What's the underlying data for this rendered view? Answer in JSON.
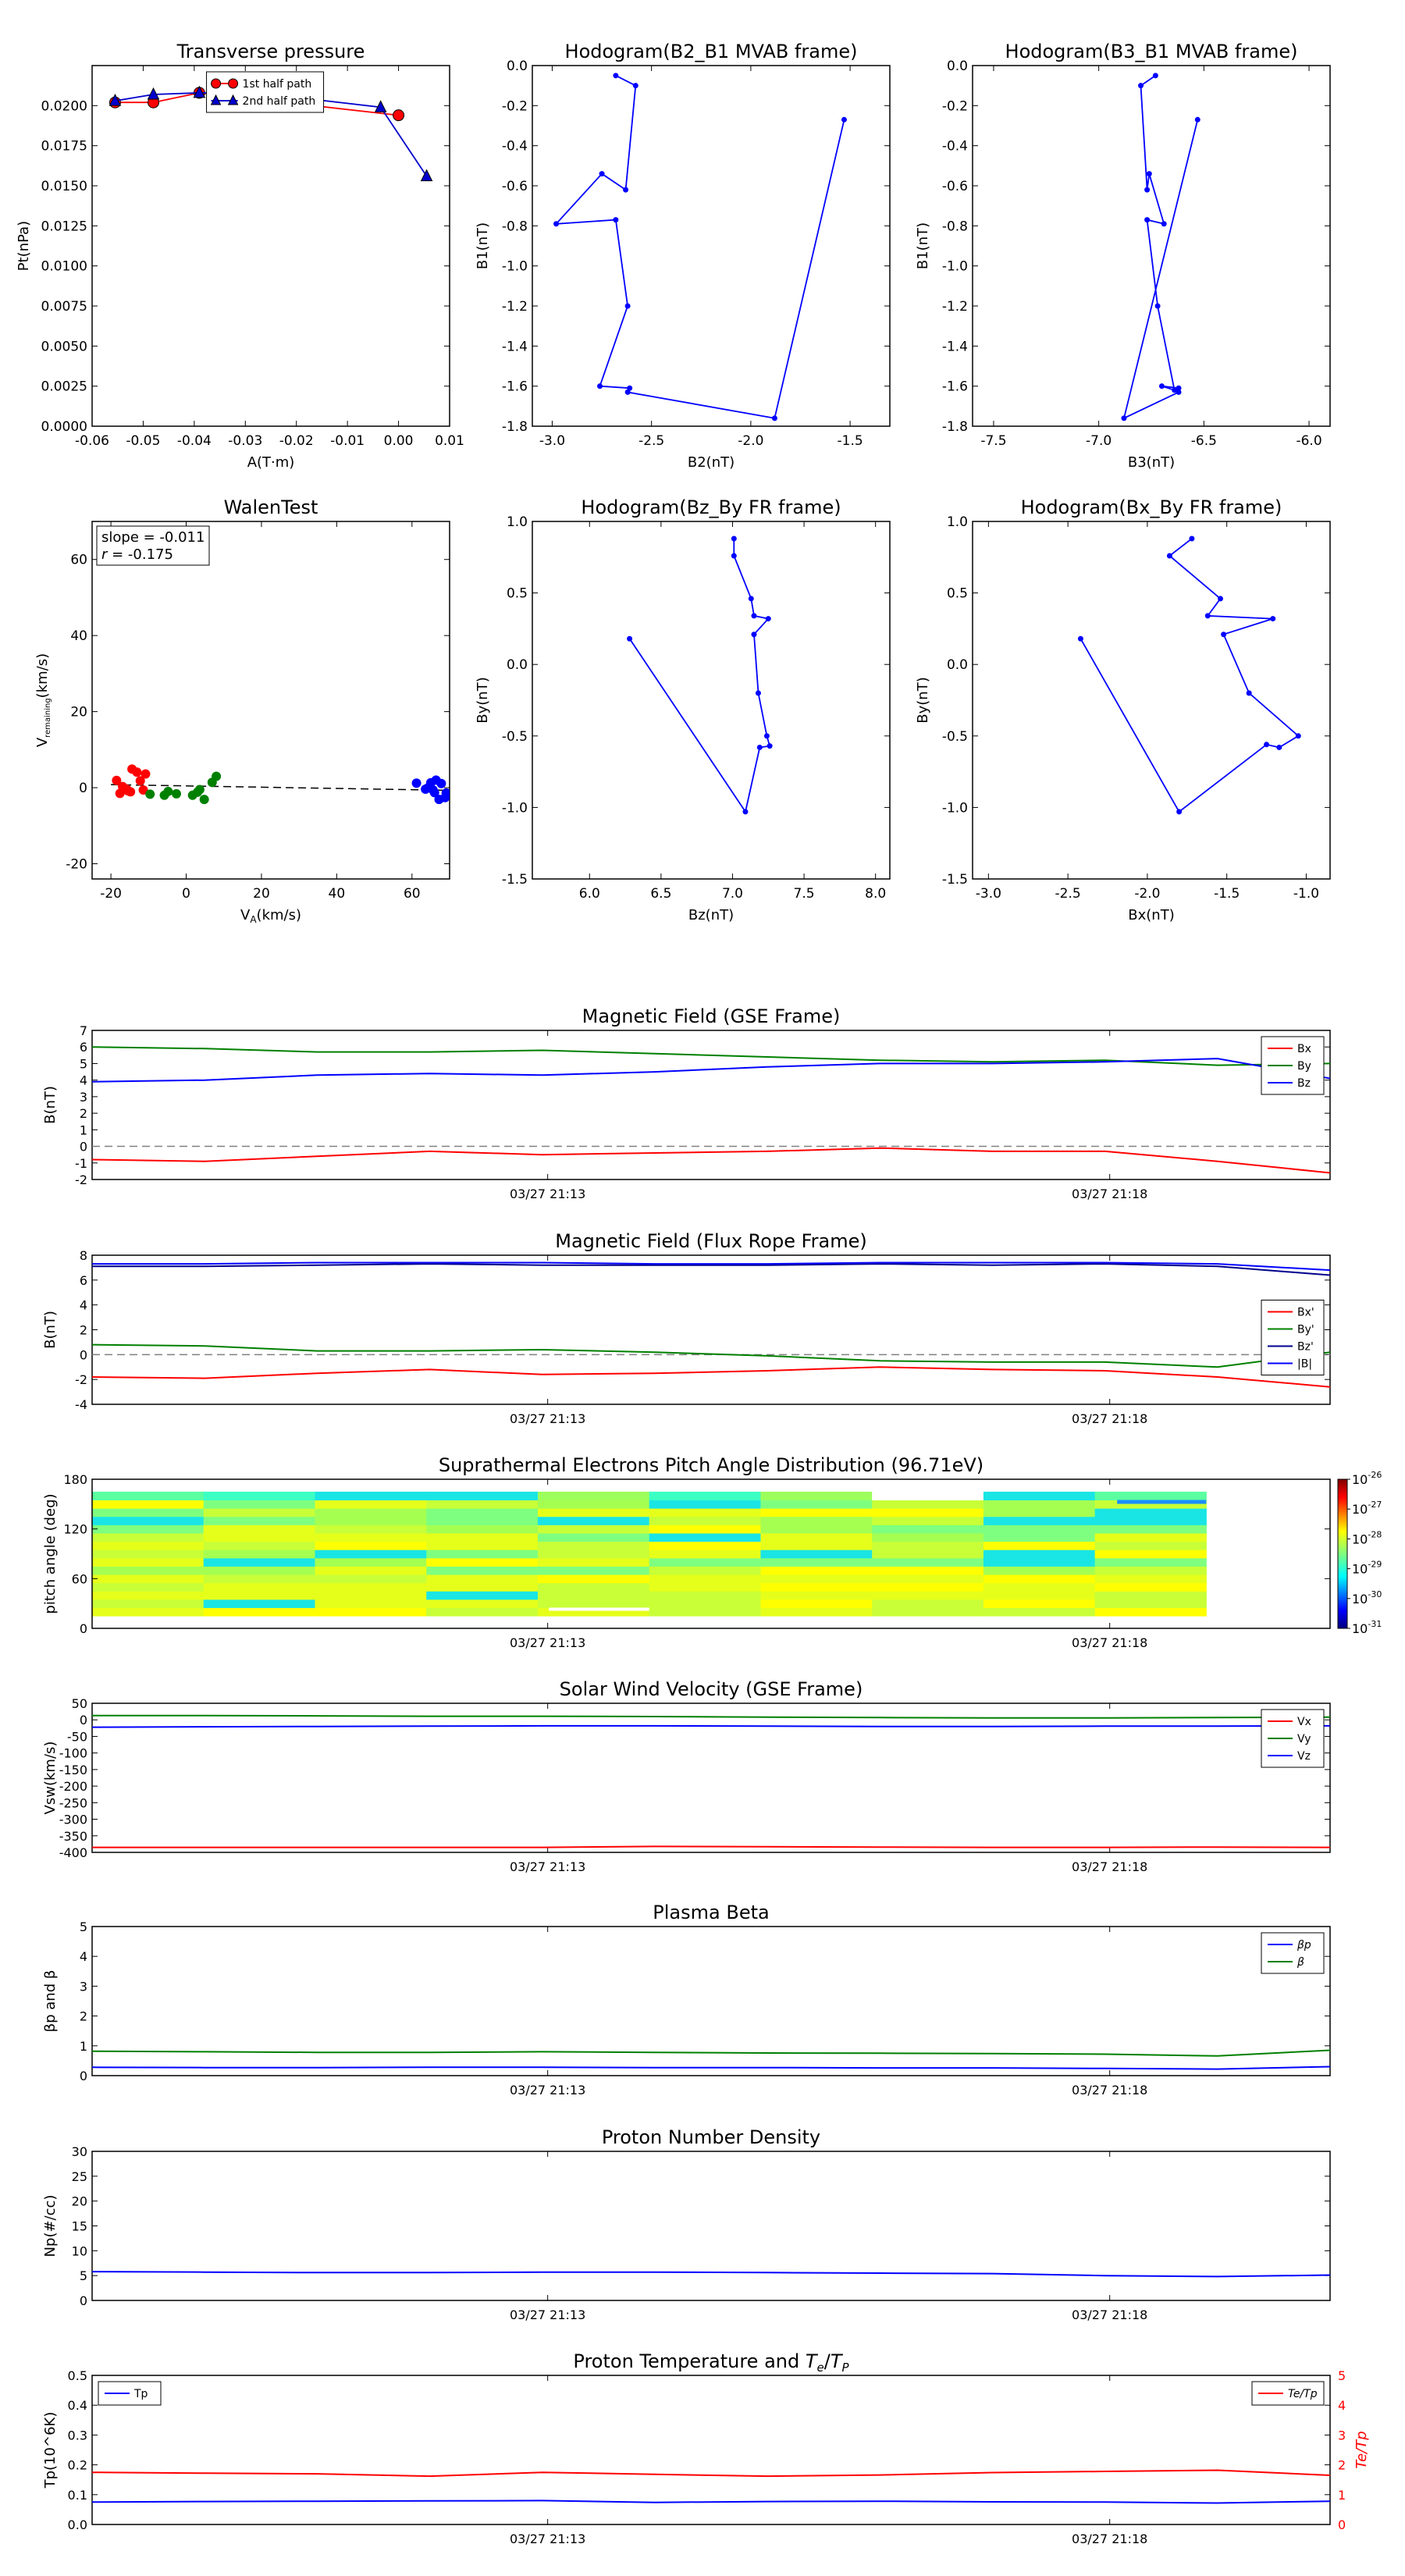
{
  "chart_data": [
    {
      "id": "tp",
      "type": "scatter",
      "title": "Transverse pressure",
      "xlabel": "A(T·m)",
      "ylabel": "Pt(nPa)",
      "xlim": [
        -0.06,
        0.01
      ],
      "ylim": [
        0,
        0.0225
      ],
      "xticks": [
        -0.06,
        -0.05,
        -0.04,
        -0.03,
        -0.02,
        -0.01,
        0.0,
        0.01
      ],
      "yticks": [
        0,
        0.0025,
        0.005,
        0.0075,
        0.01,
        0.0125,
        0.015,
        0.0175,
        0.02
      ],
      "xfmt": 2,
      "yfmt": 4,
      "legend": {
        "position": "top-center",
        "entries": [
          "1st half path",
          "2nd half path"
        ]
      },
      "series": [
        {
          "name": "1st half path",
          "color": "#ff0000",
          "marker": "circle",
          "x": [
            -0.0555,
            -0.048,
            -0.039,
            0.0
          ],
          "y": [
            0.0202,
            0.0202,
            0.0208,
            0.0194
          ]
        },
        {
          "name": "2nd half path",
          "color": "#0000cc",
          "marker": "triangle",
          "x": [
            -0.0555,
            -0.048,
            -0.039,
            -0.025,
            -0.0035,
            0.0055
          ],
          "y": [
            0.0203,
            0.0207,
            0.0208,
            0.0207,
            0.0199,
            0.0156
          ]
        }
      ]
    },
    {
      "id": "hodo1",
      "type": "line",
      "title": "Hodogram(B2_B1 MVAB frame)",
      "xlabel": "B2(nT)",
      "ylabel": "B1(nT)",
      "xlim": [
        -3.1,
        -1.3
      ],
      "ylim": [
        -1.8,
        0
      ],
      "xticks": [
        -3.0,
        -2.5,
        -2.0,
        -1.5
      ],
      "yticks": [
        -1.8,
        -1.6,
        -1.4,
        -1.2,
        -1.0,
        -0.8,
        -0.6,
        -0.4,
        -0.2,
        0.0
      ],
      "xfmt": 1,
      "yfmt": 1,
      "series": [
        {
          "color": "#0000ff",
          "x": [
            -2.68,
            -2.58,
            -2.63,
            -2.75,
            -2.98,
            -2.68,
            -2.62,
            -2.76,
            -2.61,
            -2.62,
            -1.88,
            -1.53
          ],
          "y": [
            -0.05,
            -0.1,
            -0.62,
            -0.54,
            -0.79,
            -0.77,
            -1.2,
            -1.6,
            -1.61,
            -1.63,
            -1.76,
            -0.27
          ]
        }
      ]
    },
    {
      "id": "hodo2",
      "type": "line",
      "title": "Hodogram(B3_B1 MVAB frame)",
      "xlabel": "B3(nT)",
      "ylabel": "B1(nT)",
      "xlim": [
        -7.6,
        -5.9
      ],
      "ylim": [
        -1.8,
        0
      ],
      "xticks": [
        -7.5,
        -7.0,
        -6.5,
        -6.0
      ],
      "yticks": [
        -1.8,
        -1.6,
        -1.4,
        -1.2,
        -1.0,
        -0.8,
        -0.6,
        -0.4,
        -0.2,
        0.0
      ],
      "xfmt": 1,
      "yfmt": 1,
      "series": [
        {
          "color": "#0000ff",
          "x": [
            -6.73,
            -6.8,
            -6.77,
            -6.76,
            -6.69,
            -6.77,
            -6.72,
            -6.64,
            -6.7,
            -6.62,
            -6.62,
            -6.88,
            -6.53
          ],
          "y": [
            -0.05,
            -0.1,
            -0.62,
            -0.54,
            -0.79,
            -0.77,
            -1.2,
            -1.62,
            -1.6,
            -1.61,
            -1.63,
            -1.76,
            -0.27
          ]
        }
      ]
    },
    {
      "id": "walen",
      "type": "scatter",
      "title": "WalenTest",
      "xlabel": "V_A(km/s)",
      "ylabel": "V_remaining(km/s)",
      "xlim": [
        -25,
        70
      ],
      "ylim": [
        -24,
        70
      ],
      "xticks": [
        -20,
        0,
        20,
        40,
        60
      ],
      "yticks": [
        -20,
        0,
        20,
        40,
        60
      ],
      "xfmt": 0,
      "yfmt": 0,
      "annotation": {
        "line1": "slope = -0.011",
        "line2": "r = -0.175"
      },
      "fit_line": {
        "x": [
          -20,
          70
        ],
        "y": [
          0.8,
          -0.7
        ]
      },
      "series": [
        {
          "color": "#ff0000",
          "x": [
            -18.5,
            -17.6,
            -16.9,
            -15.5,
            -14.8,
            -14.4,
            -13.1,
            -12.2,
            -11.4,
            -10.8,
            -15.8
          ],
          "y": [
            1.9,
            -1.5,
            0.3,
            -0.8,
            -1.1,
            4.9,
            4.1,
            1.8,
            -0.6,
            3.6,
            -0.4
          ]
        },
        {
          "color": "#008000",
          "x": [
            -9.6,
            -5.8,
            -4.8,
            -2.6,
            1.7,
            3.0,
            3.6,
            4.8,
            6.9,
            8.0
          ],
          "y": [
            -1.7,
            -2.0,
            -1.0,
            -1.6,
            -2.0,
            -1.2,
            -0.5,
            -3.1,
            1.4,
            3.0
          ]
        },
        {
          "color": "#0000ff",
          "x": [
            61.2,
            63.6,
            64.3,
            65.0,
            65.6,
            66.0,
            66.4,
            67.2,
            67.8,
            68.8,
            69.1
          ],
          "y": [
            1.2,
            -0.4,
            0.0,
            1.3,
            -0.6,
            -1.3,
            2.0,
            -3.1,
            1.1,
            -2.6,
            -1.4
          ]
        }
      ]
    },
    {
      "id": "hodo3",
      "type": "line",
      "title": "Hodogram(Bz_By FR frame)",
      "xlabel": "Bz(nT)",
      "ylabel": "By(nT)",
      "xlim": [
        5.6,
        8.1
      ],
      "ylim": [
        -1.5,
        1.0
      ],
      "xticks": [
        6.0,
        6.5,
        7.0,
        7.5,
        8.0
      ],
      "yticks": [
        -1.5,
        -1.0,
        -0.5,
        0.0,
        0.5,
        1.0
      ],
      "xfmt": 1,
      "yfmt": 1,
      "series": [
        {
          "color": "#0000ff",
          "x": [
            7.01,
            7.01,
            7.13,
            7.15,
            7.25,
            7.15,
            7.18,
            7.24,
            7.26,
            7.19,
            7.09,
            6.28
          ],
          "y": [
            0.88,
            0.76,
            0.46,
            0.34,
            0.32,
            0.21,
            -0.2,
            -0.5,
            -0.57,
            -0.58,
            -1.03,
            0.18
          ]
        }
      ]
    },
    {
      "id": "hodo4",
      "type": "line",
      "title": "Hodogram(Bx_By FR frame)",
      "xlabel": "Bx(nT)",
      "ylabel": "By(nT)",
      "xlim": [
        -3.1,
        -0.85
      ],
      "ylim": [
        -1.5,
        1.0
      ],
      "xticks": [
        -3.0,
        -2.5,
        -2.0,
        -1.5,
        -1.0
      ],
      "yticks": [
        -1.5,
        -1.0,
        -0.5,
        0.0,
        0.5,
        1.0
      ],
      "xfmt": 1,
      "yfmt": 1,
      "series": [
        {
          "color": "#0000ff",
          "x": [
            -1.72,
            -1.86,
            -1.54,
            -1.62,
            -1.21,
            -1.52,
            -1.36,
            -1.05,
            -1.17,
            -1.25,
            -1.8,
            -2.42
          ],
          "y": [
            0.88,
            0.76,
            0.46,
            0.34,
            0.32,
            0.21,
            -0.2,
            -0.5,
            -0.58,
            -0.56,
            -1.03,
            0.18
          ]
        }
      ]
    },
    {
      "id": "bgse",
      "type": "line",
      "title": "Magnetic Field (GSE Frame)",
      "ylabel": "B(nT)",
      "ylim": [
        -2,
        7
      ],
      "yticks": [
        -2,
        -1,
        0,
        1,
        2,
        3,
        4,
        5,
        6,
        7
      ],
      "xticklabels": [
        "03/27 21:13",
        "03/27 21:18"
      ],
      "zero_line": true,
      "legend": {
        "position": "top-right",
        "entries": [
          "Bx",
          "By",
          "Bz"
        ]
      },
      "x": [
        0,
        1,
        2,
        3,
        4,
        5,
        6,
        7,
        8,
        9,
        10,
        11
      ],
      "series": [
        {
          "name": "Bx",
          "color": "#ff0000",
          "values": [
            -0.8,
            -0.9,
            -0.6,
            -0.3,
            -0.5,
            -0.4,
            -0.3,
            -0.1,
            -0.3,
            -0.3,
            -0.9,
            -1.6
          ]
        },
        {
          "name": "By",
          "color": "#008000",
          "values": [
            6.0,
            5.9,
            5.7,
            5.7,
            5.8,
            5.6,
            5.4,
            5.2,
            5.1,
            5.2,
            4.9,
            5.0
          ]
        },
        {
          "name": "Bz",
          "color": "#0000ff",
          "values": [
            3.9,
            4.0,
            4.3,
            4.4,
            4.3,
            4.5,
            4.8,
            5.0,
            5.0,
            5.1,
            5.3,
            4.1
          ]
        }
      ]
    },
    {
      "id": "bfr",
      "type": "line",
      "title": "Magnetic Field (Flux Rope Frame)",
      "ylabel": "B(nT)",
      "ylim": [
        -4,
        8
      ],
      "yticks": [
        -4,
        -2,
        0,
        2,
        4,
        6,
        8
      ],
      "xticklabels": [
        "03/27 21:13",
        "03/27 21:18"
      ],
      "zero_line": true,
      "legend": {
        "position": "right",
        "entries": [
          "Bx'",
          "By'",
          "Bz'",
          "|B|"
        ]
      },
      "x": [
        0,
        1,
        2,
        3,
        4,
        5,
        6,
        7,
        8,
        9,
        10,
        11
      ],
      "series": [
        {
          "name": "Bx'",
          "color": "#ff0000",
          "values": [
            -1.8,
            -1.9,
            -1.5,
            -1.2,
            -1.6,
            -1.5,
            -1.3,
            -1.0,
            -1.2,
            -1.3,
            -1.8,
            -2.6
          ]
        },
        {
          "name": "By'",
          "color": "#008000",
          "values": [
            0.8,
            0.7,
            0.3,
            0.3,
            0.4,
            0.2,
            -0.1,
            -0.5,
            -0.6,
            -0.6,
            -1.0,
            0.2
          ]
        },
        {
          "name": "Bz'",
          "color": "#00008b",
          "values": [
            7.1,
            7.1,
            7.2,
            7.3,
            7.2,
            7.2,
            7.2,
            7.3,
            7.2,
            7.3,
            7.1,
            6.4
          ]
        },
        {
          "name": "|B|",
          "color": "#0000ff",
          "values": [
            7.3,
            7.3,
            7.4,
            7.4,
            7.4,
            7.3,
            7.3,
            7.4,
            7.4,
            7.4,
            7.3,
            6.8
          ]
        }
      ]
    },
    {
      "id": "pad",
      "type": "heatmap",
      "title": "Suprathermal Electrons Pitch Angle Distribution (96.71eV)",
      "ylabel": "pitch angle (deg)",
      "ylim": [
        0,
        180
      ],
      "yticks": [
        0,
        60,
        120,
        180
      ],
      "xticklabels": [
        "03/27 21:13",
        "03/27 21:18"
      ],
      "colorbar": {
        "min_exp": -31,
        "max_exp": -26,
        "ticks": [
          "10-26",
          "10-27",
          "10-28",
          "10-29",
          "10-30",
          "10-31"
        ]
      }
    },
    {
      "id": "vsw",
      "type": "line",
      "title": "Solar Wind Velocity (GSE Frame)",
      "ylabel": "Vsw(km/s)",
      "ylim": [
        -400,
        50
      ],
      "yticks": [
        -400,
        -350,
        -300,
        -250,
        -200,
        -150,
        -100,
        -50,
        0,
        50
      ],
      "xticklabels": [
        "03/27 21:13",
        "03/27 21:18"
      ],
      "legend": {
        "position": "top-right",
        "entries": [
          "Vx",
          "Vy",
          "Vz"
        ]
      },
      "x": [
        0,
        1,
        2,
        3,
        4,
        5,
        6,
        7,
        8,
        9,
        10,
        11
      ],
      "series": [
        {
          "name": "Vx",
          "color": "#ff0000",
          "values": [
            -385,
            -385,
            -385,
            -385,
            -385,
            -382,
            -383,
            -384,
            -385,
            -385,
            -384,
            -385
          ]
        },
        {
          "name": "Vy",
          "color": "#008000",
          "values": [
            13,
            13,
            12,
            11,
            11,
            10,
            8,
            7,
            6,
            6,
            7,
            8
          ]
        },
        {
          "name": "Vz",
          "color": "#0000ff",
          "values": [
            -22,
            -21,
            -20,
            -19,
            -18,
            -18,
            -19,
            -20,
            -20,
            -19,
            -19,
            -18
          ]
        }
      ]
    },
    {
      "id": "beta",
      "type": "line",
      "title": "Plasma Beta",
      "ylabel": "βp and β",
      "ylim": [
        0,
        5
      ],
      "yticks": [
        0,
        1,
        2,
        3,
        4,
        5
      ],
      "xticklabels": [
        "03/27 21:13",
        "03/27 21:18"
      ],
      "legend": {
        "position": "top-right",
        "entries": [
          "βp",
          "β"
        ]
      },
      "x": [
        0,
        1,
        2,
        3,
        4,
        5,
        6,
        7,
        8,
        9,
        10,
        11
      ],
      "series": [
        {
          "name": "βp",
          "color": "#0000ff",
          "values": [
            0.28,
            0.27,
            0.27,
            0.28,
            0.28,
            0.27,
            0.27,
            0.26,
            0.26,
            0.24,
            0.22,
            0.3
          ]
        },
        {
          "name": "β",
          "color": "#008000",
          "values": [
            0.82,
            0.8,
            0.78,
            0.78,
            0.8,
            0.78,
            0.76,
            0.75,
            0.74,
            0.72,
            0.66,
            0.85
          ]
        }
      ]
    },
    {
      "id": "np",
      "type": "line",
      "title": "Proton Number Density",
      "ylabel": "Np(#/cc)",
      "ylim": [
        0,
        30
      ],
      "yticks": [
        0,
        5,
        10,
        15,
        20,
        25,
        30
      ],
      "xticklabels": [
        "03/27 21:13",
        "03/27 21:18"
      ],
      "x": [
        0,
        1,
        2,
        3,
        4,
        5,
        6,
        7,
        8,
        9,
        10,
        11
      ],
      "series": [
        {
          "color": "#0000ff",
          "values": [
            5.8,
            5.7,
            5.6,
            5.6,
            5.7,
            5.7,
            5.6,
            5.5,
            5.4,
            5.0,
            4.8,
            5.1
          ]
        }
      ]
    },
    {
      "id": "tp2",
      "type": "line",
      "title": "Proton Temperature and Te/Tp",
      "ylabel": "Tp(10^6K)",
      "ylim": [
        0,
        0.5
      ],
      "yticks": [
        0,
        0.1,
        0.2,
        0.3,
        0.4,
        0.5
      ],
      "yfmt": 1,
      "y2label": "Te/Tp",
      "y2lim": [
        0,
        5
      ],
      "y2ticks": [
        0,
        1,
        2,
        3,
        4,
        5
      ],
      "xticklabels": [
        "03/27 21:13",
        "03/27 21:18"
      ],
      "legend": {
        "position": "top-left",
        "entries": [
          "Tp"
        ]
      },
      "legend2": {
        "position": "top-right",
        "entries": [
          "Te/Tp"
        ]
      },
      "x": [
        0,
        1,
        2,
        3,
        4,
        5,
        6,
        7,
        8,
        9,
        10,
        11
      ],
      "series": [
        {
          "name": "Tp",
          "color": "#0000ff",
          "axis": "left",
          "values": [
            0.075,
            0.077,
            0.078,
            0.079,
            0.08,
            0.074,
            0.077,
            0.078,
            0.076,
            0.075,
            0.072,
            0.078
          ]
        },
        {
          "name": "Te/Tp",
          "color": "#ff0000",
          "axis": "right",
          "values": [
            1.75,
            1.72,
            1.7,
            1.62,
            1.75,
            1.68,
            1.62,
            1.66,
            1.74,
            1.78,
            1.82,
            1.65
          ]
        }
      ]
    }
  ]
}
